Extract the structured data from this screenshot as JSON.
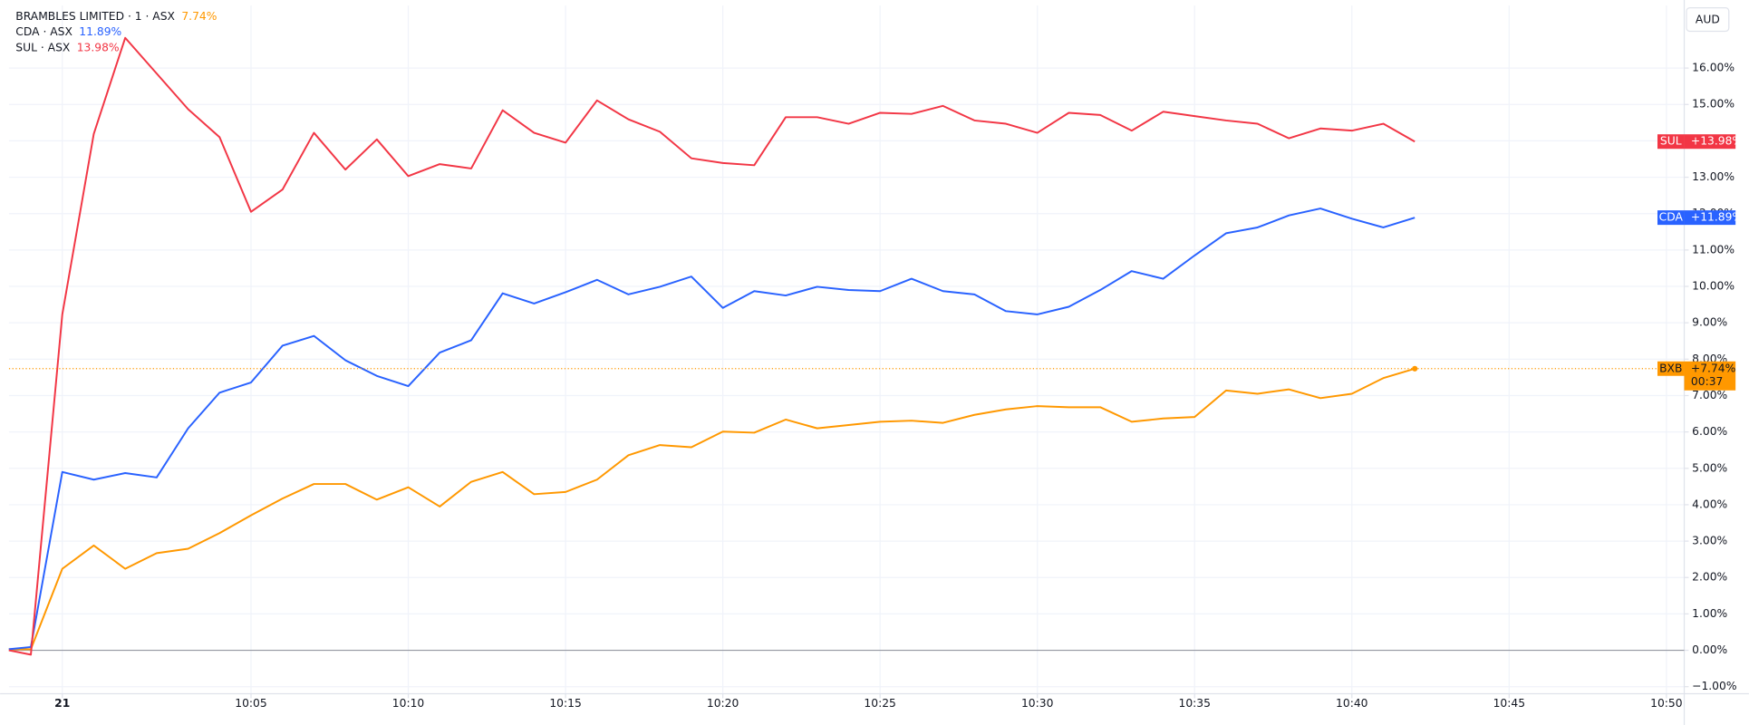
{
  "chart_data": {
    "type": "line",
    "currency": "AUD",
    "countdown": "00:37",
    "x": [
      -2.7,
      -2,
      -1,
      0,
      1,
      2,
      3,
      4,
      5,
      6,
      7,
      8,
      9,
      10,
      11,
      12,
      13,
      14,
      15,
      16,
      17,
      18,
      19,
      20,
      21,
      22,
      23,
      24,
      25,
      26,
      27,
      28,
      29,
      30,
      31,
      32,
      33,
      34,
      35,
      36,
      37,
      38,
      39,
      40,
      41,
      42
    ],
    "xlim": [
      -2.695,
      50.567
    ],
    "xticks": [
      {
        "value": -1,
        "label": "21"
      },
      {
        "value": 5,
        "label": "10:05"
      },
      {
        "value": 10,
        "label": "10:10"
      },
      {
        "value": 15,
        "label": "10:15"
      },
      {
        "value": 20,
        "label": "10:20"
      },
      {
        "value": 25,
        "label": "10:25"
      },
      {
        "value": 30,
        "label": "10:30"
      },
      {
        "value": 35,
        "label": "10:35"
      },
      {
        "value": 40,
        "label": "10:40"
      },
      {
        "value": 45,
        "label": "10:45"
      },
      {
        "value": 50,
        "label": "10:50"
      }
    ],
    "ylim": [
      -1.195,
      17.717
    ],
    "yticks": [
      {
        "value": -1,
        "label": "−1.00%"
      },
      {
        "value": 0,
        "label": "0.00%"
      },
      {
        "value": 1,
        "label": "1.00%"
      },
      {
        "value": 2,
        "label": "2.00%"
      },
      {
        "value": 3,
        "label": "3.00%"
      },
      {
        "value": 4,
        "label": "4.00%"
      },
      {
        "value": 5,
        "label": "5.00%"
      },
      {
        "value": 6,
        "label": "6.00%"
      },
      {
        "value": 7,
        "label": "7.00%"
      },
      {
        "value": 8,
        "label": "8.00%"
      },
      {
        "value": 9,
        "label": "9.00%"
      },
      {
        "value": 10,
        "label": "10.00%"
      },
      {
        "value": 11,
        "label": "11.00%"
      },
      {
        "value": 12,
        "label": "12.00%"
      },
      {
        "value": 13,
        "label": "13.00%"
      },
      {
        "value": 14,
        "label": "14.00%"
      },
      {
        "value": 15,
        "label": "15.00%"
      },
      {
        "value": 16,
        "label": "16.00%"
      }
    ],
    "grid": true,
    "series": [
      {
        "name": "BRAMBLES LIMITED · 1 · ASX",
        "symbol": "BXB",
        "legend_value": "7.74%",
        "badge": "+7.74%",
        "color": "#ff9800",
        "values": [
          0.03,
          0.03,
          2.24,
          2.88,
          2.24,
          2.67,
          2.79,
          3.22,
          3.71,
          4.17,
          4.57,
          4.57,
          4.14,
          4.48,
          3.95,
          4.63,
          4.9,
          4.29,
          4.35,
          4.69,
          5.36,
          5.64,
          5.58,
          6.01,
          5.98,
          6.34,
          6.1,
          6.19,
          6.28,
          6.31,
          6.25,
          6.47,
          6.62,
          6.71,
          6.68,
          6.68,
          6.28,
          6.37,
          6.41,
          7.14,
          7.05,
          7.17,
          6.93,
          7.05,
          7.48,
          7.74
        ]
      },
      {
        "name": "CDA · ASX",
        "symbol": "CDA",
        "legend_value": "11.89%",
        "badge": "+11.89%",
        "color": "#2962ff",
        "values": [
          0.03,
          0.09,
          4.9,
          4.69,
          4.87,
          4.75,
          6.1,
          7.08,
          7.36,
          8.37,
          8.64,
          7.97,
          7.54,
          7.26,
          8.18,
          8.52,
          9.81,
          9.53,
          9.84,
          10.18,
          9.78,
          9.99,
          10.27,
          9.41,
          9.87,
          9.75,
          9.99,
          9.9,
          9.87,
          10.21,
          9.87,
          9.78,
          9.32,
          9.23,
          9.44,
          9.9,
          10.42,
          10.21,
          10.85,
          11.46,
          11.62,
          11.95,
          12.14,
          11.86,
          11.62,
          11.89
        ]
      },
      {
        "name": "SUL · ASX",
        "symbol": "SUL",
        "legend_value": "13.98%",
        "badge": "+13.98%",
        "color": "#f23645",
        "values": [
          0,
          -0.12,
          9.23,
          14.19,
          16.83,
          15.85,
          14.87,
          14.1,
          12.05,
          12.66,
          14.22,
          13.21,
          14.04,
          13.03,
          13.36,
          13.24,
          14.84,
          14.22,
          13.95,
          15.11,
          14.59,
          14.25,
          13.52,
          13.39,
          13.33,
          14.65,
          14.65,
          14.47,
          14.77,
          14.74,
          14.96,
          14.56,
          14.47,
          14.22,
          14.77,
          14.71,
          14.28,
          14.8,
          14.68,
          14.56,
          14.47,
          14.07,
          14.34,
          14.28,
          14.47,
          13.98
        ]
      }
    ]
  }
}
